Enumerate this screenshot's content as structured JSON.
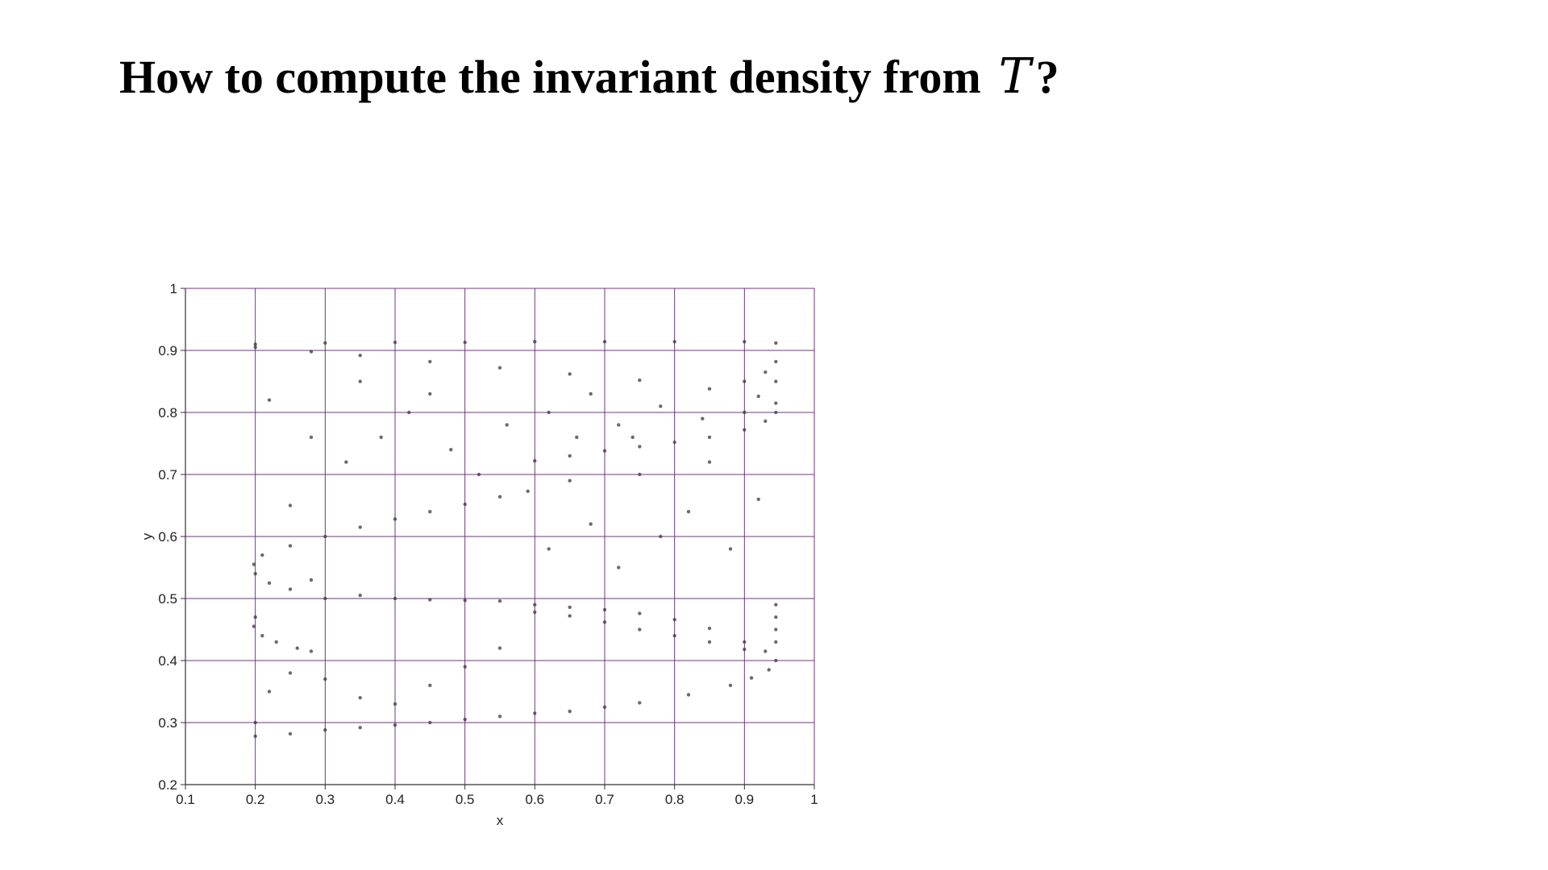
{
  "slide": {
    "title_text": "How to compute the invariant density from",
    "title_symbol": "T",
    "title_suffix": "?"
  },
  "chart_data": {
    "type": "scatter",
    "title": "",
    "xlabel": "x",
    "ylabel": "y",
    "xlim": [
      0.1,
      1
    ],
    "ylim": [
      0.2,
      1
    ],
    "xticks": [
      0.1,
      0.2,
      0.3,
      0.4,
      0.5,
      0.6,
      0.7,
      0.8,
      0.9,
      1
    ],
    "xtick_labels": [
      "0.1",
      "0.2",
      "0.3",
      "0.4",
      "0.5",
      "0.6",
      "0.7",
      "0.8",
      "0.9",
      "1"
    ],
    "yticks": [
      0.2,
      0.3,
      0.4,
      0.5,
      0.6,
      0.7,
      0.8,
      0.9,
      1
    ],
    "ytick_labels": [
      "0.2",
      "0.3",
      "0.4",
      "0.5",
      "0.6",
      "0.7",
      "0.8",
      "0.9",
      "1"
    ],
    "grid": true,
    "legend": "none",
    "colors": {
      "grid": "#6b3a78",
      "points": "#3a3a3a",
      "axis": "#333333"
    },
    "series": [
      {
        "values": [
          [
            0.2,
            0.91
          ],
          [
            0.3,
            0.912
          ],
          [
            0.4,
            0.913
          ],
          [
            0.5,
            0.913
          ],
          [
            0.6,
            0.914
          ],
          [
            0.7,
            0.914
          ],
          [
            0.8,
            0.914
          ],
          [
            0.9,
            0.914
          ],
          [
            0.945,
            0.912
          ],
          [
            0.2,
            0.905
          ],
          [
            0.28,
            0.898
          ],
          [
            0.35,
            0.892
          ],
          [
            0.45,
            0.882
          ],
          [
            0.55,
            0.872
          ],
          [
            0.65,
            0.862
          ],
          [
            0.75,
            0.852
          ],
          [
            0.85,
            0.838
          ],
          [
            0.92,
            0.826
          ],
          [
            0.945,
            0.815
          ],
          [
            0.945,
            0.882
          ],
          [
            0.93,
            0.865
          ],
          [
            0.9,
            0.85
          ],
          [
            0.945,
            0.85
          ],
          [
            0.945,
            0.8
          ],
          [
            0.93,
            0.786
          ],
          [
            0.9,
            0.772
          ],
          [
            0.85,
            0.76
          ],
          [
            0.8,
            0.752
          ],
          [
            0.75,
            0.745
          ],
          [
            0.7,
            0.738
          ],
          [
            0.65,
            0.73
          ],
          [
            0.6,
            0.722
          ],
          [
            0.59,
            0.673
          ],
          [
            0.55,
            0.664
          ],
          [
            0.5,
            0.652
          ],
          [
            0.45,
            0.64
          ],
          [
            0.4,
            0.628
          ],
          [
            0.35,
            0.615
          ],
          [
            0.3,
            0.6
          ],
          [
            0.25,
            0.585
          ],
          [
            0.21,
            0.57
          ],
          [
            0.198,
            0.555
          ],
          [
            0.2,
            0.54
          ],
          [
            0.22,
            0.525
          ],
          [
            0.25,
            0.515
          ],
          [
            0.28,
            0.53
          ],
          [
            0.2,
            0.47
          ],
          [
            0.198,
            0.455
          ],
          [
            0.21,
            0.44
          ],
          [
            0.23,
            0.43
          ],
          [
            0.26,
            0.42
          ],
          [
            0.28,
            0.415
          ],
          [
            0.6,
            0.49
          ],
          [
            0.65,
            0.486
          ],
          [
            0.7,
            0.482
          ],
          [
            0.75,
            0.476
          ],
          [
            0.8,
            0.466
          ],
          [
            0.85,
            0.452
          ],
          [
            0.9,
            0.43
          ],
          [
            0.93,
            0.415
          ],
          [
            0.945,
            0.4
          ],
          [
            0.935,
            0.385
          ],
          [
            0.91,
            0.372
          ],
          [
            0.88,
            0.36
          ],
          [
            0.82,
            0.345
          ],
          [
            0.75,
            0.332
          ],
          [
            0.7,
            0.325
          ],
          [
            0.65,
            0.318
          ],
          [
            0.6,
            0.315
          ],
          [
            0.6,
            0.478
          ],
          [
            0.65,
            0.472
          ],
          [
            0.7,
            0.462
          ],
          [
            0.75,
            0.45
          ],
          [
            0.8,
            0.44
          ],
          [
            0.85,
            0.43
          ],
          [
            0.9,
            0.418
          ],
          [
            0.945,
            0.49
          ],
          [
            0.945,
            0.47
          ],
          [
            0.945,
            0.45
          ],
          [
            0.945,
            0.43
          ],
          [
            0.55,
            0.31
          ],
          [
            0.5,
            0.305
          ],
          [
            0.45,
            0.3
          ],
          [
            0.4,
            0.296
          ],
          [
            0.35,
            0.292
          ],
          [
            0.3,
            0.288
          ],
          [
            0.25,
            0.282
          ],
          [
            0.2,
            0.278
          ],
          [
            0.2,
            0.3
          ],
          [
            0.22,
            0.35
          ],
          [
            0.25,
            0.38
          ],
          [
            0.3,
            0.37
          ],
          [
            0.35,
            0.34
          ],
          [
            0.4,
            0.33
          ],
          [
            0.45,
            0.36
          ],
          [
            0.5,
            0.39
          ],
          [
            0.55,
            0.42
          ],
          [
            0.3,
            0.5
          ],
          [
            0.35,
            0.505
          ],
          [
            0.4,
            0.5
          ],
          [
            0.45,
            0.498
          ],
          [
            0.5,
            0.497
          ],
          [
            0.55,
            0.496
          ],
          [
            0.25,
            0.65
          ],
          [
            0.33,
            0.72
          ],
          [
            0.38,
            0.76
          ],
          [
            0.42,
            0.8
          ],
          [
            0.48,
            0.74
          ],
          [
            0.52,
            0.7
          ],
          [
            0.56,
            0.78
          ],
          [
            0.22,
            0.82
          ],
          [
            0.28,
            0.76
          ],
          [
            0.35,
            0.85
          ],
          [
            0.45,
            0.83
          ],
          [
            0.62,
            0.58
          ],
          [
            0.68,
            0.62
          ],
          [
            0.72,
            0.55
          ],
          [
            0.78,
            0.6
          ],
          [
            0.82,
            0.64
          ],
          [
            0.88,
            0.58
          ],
          [
            0.92,
            0.66
          ],
          [
            0.65,
            0.69
          ],
          [
            0.75,
            0.7
          ],
          [
            0.85,
            0.72
          ],
          [
            0.62,
            0.8
          ],
          [
            0.68,
            0.83
          ],
          [
            0.72,
            0.78
          ],
          [
            0.78,
            0.81
          ],
          [
            0.84,
            0.79
          ],
          [
            0.66,
            0.76
          ],
          [
            0.74,
            0.76
          ],
          [
            0.9,
            0.8
          ]
        ]
      }
    ]
  }
}
